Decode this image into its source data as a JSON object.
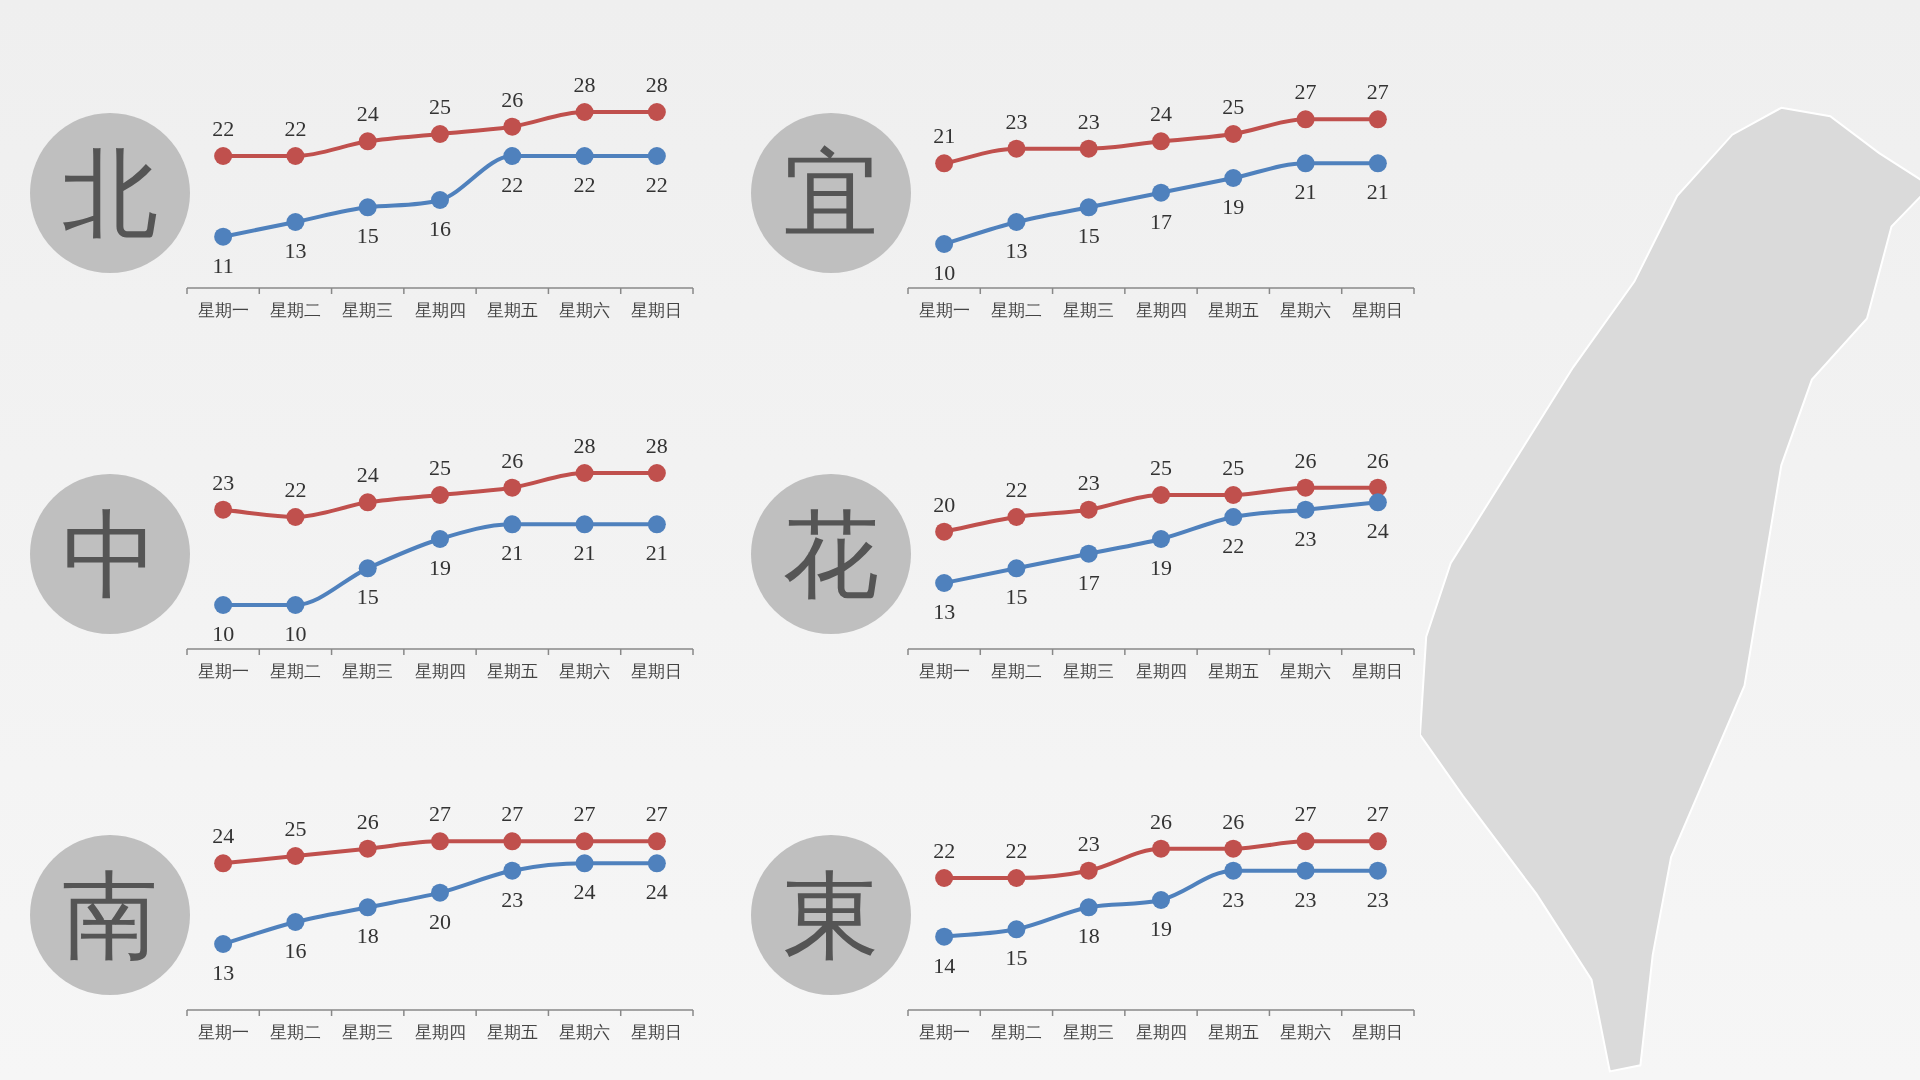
{
  "chart_data": [
    {
      "type": "line",
      "title": "北",
      "categories": [
        "星期一",
        "星期二",
        "星期三",
        "星期四",
        "星期五",
        "星期六",
        "星期日"
      ],
      "data_labels": true,
      "marker": "circle",
      "series": [
        {
          "color": "#c0504d",
          "values": [
            22,
            22,
            24,
            25,
            26,
            28,
            28
          ]
        },
        {
          "color": "#4f81bd",
          "values": [
            11,
            13,
            15,
            16,
            22,
            22,
            22
          ]
        }
      ]
    },
    {
      "type": "line",
      "title": "宜",
      "categories": [
        "星期一",
        "星期二",
        "星期三",
        "星期四",
        "星期五",
        "星期六",
        "星期日"
      ],
      "data_labels": true,
      "marker": "circle",
      "series": [
        {
          "color": "#c0504d",
          "values": [
            21,
            23,
            23,
            24,
            25,
            27,
            27
          ]
        },
        {
          "color": "#4f81bd",
          "values": [
            10,
            13,
            15,
            17,
            19,
            21,
            21
          ]
        }
      ]
    },
    {
      "type": "line",
      "title": "中",
      "categories": [
        "星期一",
        "星期二",
        "星期三",
        "星期四",
        "星期五",
        "星期六",
        "星期日"
      ],
      "data_labels": true,
      "marker": "circle",
      "series": [
        {
          "color": "#c0504d",
          "values": [
            23,
            22,
            24,
            25,
            26,
            28,
            28
          ]
        },
        {
          "color": "#4f81bd",
          "values": [
            10,
            10,
            15,
            19,
            21,
            21,
            21
          ]
        }
      ]
    },
    {
      "type": "line",
      "title": "花",
      "categories": [
        "星期一",
        "星期二",
        "星期三",
        "星期四",
        "星期五",
        "星期六",
        "星期日"
      ],
      "data_labels": true,
      "marker": "circle",
      "series": [
        {
          "color": "#c0504d",
          "values": [
            20,
            22,
            23,
            25,
            25,
            26,
            26
          ]
        },
        {
          "color": "#4f81bd",
          "values": [
            13,
            15,
            17,
            19,
            22,
            23,
            24
          ]
        }
      ]
    },
    {
      "type": "line",
      "title": "南",
      "categories": [
        "星期一",
        "星期二",
        "星期三",
        "星期四",
        "星期五",
        "星期六",
        "星期日"
      ],
      "data_labels": true,
      "marker": "circle",
      "series": [
        {
          "color": "#c0504d",
          "values": [
            24,
            25,
            26,
            27,
            27,
            27,
            27
          ]
        },
        {
          "color": "#4f81bd",
          "values": [
            13,
            16,
            18,
            20,
            23,
            24,
            24
          ]
        }
      ]
    },
    {
      "type": "line",
      "title": "東",
      "categories": [
        "星期一",
        "星期二",
        "星期三",
        "星期四",
        "星期五",
        "星期六",
        "星期日"
      ],
      "data_labels": true,
      "marker": "circle",
      "series": [
        {
          "color": "#c0504d",
          "values": [
            22,
            22,
            23,
            26,
            26,
            27,
            27
          ]
        },
        {
          "color": "#4f81bd",
          "values": [
            14,
            15,
            18,
            19,
            23,
            23,
            23
          ]
        }
      ]
    }
  ]
}
